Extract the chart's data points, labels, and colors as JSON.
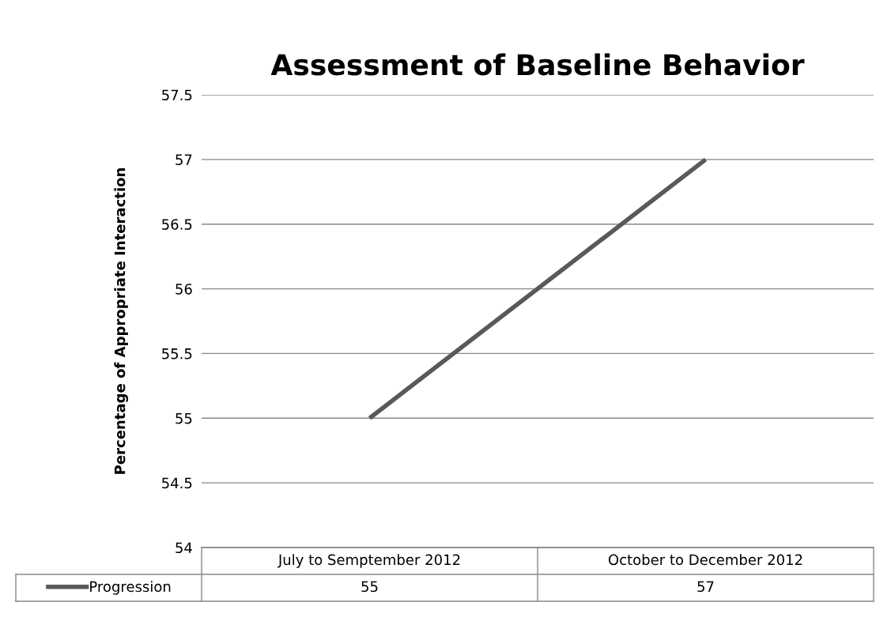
{
  "chart_data": {
    "type": "line",
    "title": "Assessment of Baseline Behavior",
    "ylabel": "Percentage of Appropriate Interaction",
    "categories": [
      "July to Semptember 2012",
      "October to December 2012"
    ],
    "series": [
      {
        "name": "Progression",
        "color": "#595959",
        "values": [
          55,
          57
        ]
      }
    ],
    "ylim": [
      54,
      57.5
    ],
    "yticks": [
      54,
      54.5,
      55,
      55.5,
      56,
      56.5,
      57,
      57.5
    ],
    "grid": "y",
    "legend": "bottom",
    "data_labels": true,
    "marker": "none",
    "line_style": "solid"
  }
}
